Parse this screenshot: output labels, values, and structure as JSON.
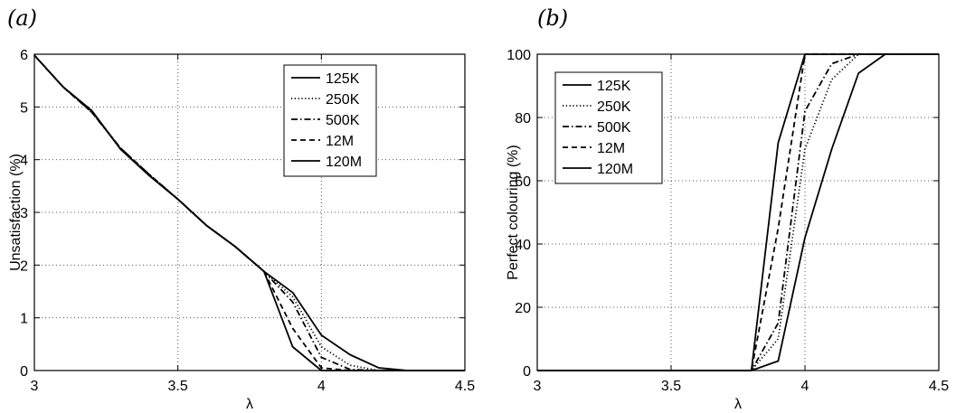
{
  "chart_data": [
    {
      "type": "line",
      "panel_label": "(a)",
      "xlabel": "λ",
      "ylabel": "Unsatisfaction (%)",
      "xlim": [
        3,
        4.5
      ],
      "ylim": [
        0,
        6
      ],
      "xticks": [
        "3",
        "3.5",
        "4",
        "4.5"
      ],
      "yticks": [
        "0",
        "1",
        "2",
        "3",
        "4",
        "5",
        "6"
      ],
      "grid": true,
      "legend_position": "top-right",
      "x": [
        3.0,
        3.1,
        3.2,
        3.3,
        3.4,
        3.5,
        3.6,
        3.7,
        3.8,
        3.9,
        4.0,
        4.1,
        4.2,
        4.3,
        4.4,
        4.5
      ],
      "series": [
        {
          "name": "125K",
          "style": "solid",
          "values": [
            5.98,
            5.38,
            4.93,
            4.2,
            3.7,
            3.25,
            2.75,
            2.35,
            1.88,
            1.48,
            0.67,
            0.3,
            0.05,
            0.0,
            0.0,
            0.0
          ]
        },
        {
          "name": "250K",
          "style": "dotted",
          "values": [
            5.98,
            5.38,
            4.9,
            4.22,
            3.72,
            3.25,
            2.75,
            2.35,
            1.88,
            1.4,
            0.45,
            0.1,
            0.0,
            0.0,
            0.0,
            0.0
          ]
        },
        {
          "name": "500K",
          "style": "dashdot",
          "values": [
            5.98,
            5.38,
            4.9,
            4.22,
            3.72,
            3.25,
            2.75,
            2.35,
            1.88,
            1.3,
            0.25,
            0.02,
            0.0,
            0.0,
            0.0,
            0.0
          ]
        },
        {
          "name": "12M",
          "style": "dashed",
          "values": [
            5.98,
            5.38,
            4.9,
            4.22,
            3.72,
            3.25,
            2.75,
            2.35,
            1.88,
            0.8,
            0.05,
            0.0,
            0.0,
            0.0,
            0.0,
            0.0
          ]
        },
        {
          "name": "120M",
          "style": "solid",
          "values": [
            5.98,
            5.38,
            4.93,
            4.2,
            3.7,
            3.25,
            2.75,
            2.35,
            1.88,
            0.45,
            0.0,
            0.0,
            0.0,
            0.0,
            0.0,
            0.0
          ]
        }
      ]
    },
    {
      "type": "line",
      "panel_label": "(b)",
      "xlabel": "λ",
      "ylabel": "Perfect colouring (%)",
      "xlim": [
        3,
        4.5
      ],
      "ylim": [
        0,
        100
      ],
      "xticks": [
        "3",
        "3.5",
        "4",
        "4.5"
      ],
      "yticks": [
        "0",
        "20",
        "40",
        "60",
        "80",
        "100"
      ],
      "grid": true,
      "legend_position": "top-left",
      "x": [
        3.0,
        3.1,
        3.2,
        3.3,
        3.4,
        3.5,
        3.6,
        3.7,
        3.8,
        3.9,
        4.0,
        4.1,
        4.2,
        4.3,
        4.4,
        4.5
      ],
      "series": [
        {
          "name": "125K",
          "style": "solid",
          "values": [
            0,
            0,
            0,
            0,
            0,
            0,
            0,
            0,
            0,
            3,
            42,
            70,
            94,
            100,
            100,
            100
          ]
        },
        {
          "name": "250K",
          "style": "dotted",
          "values": [
            0,
            0,
            0,
            0,
            0,
            0,
            0,
            0,
            0,
            10,
            70,
            92,
            100,
            100,
            100,
            100
          ]
        },
        {
          "name": "500K",
          "style": "dashdot",
          "values": [
            0,
            0,
            0,
            0,
            0,
            0,
            0,
            0,
            0,
            15,
            82,
            97,
            100,
            100,
            100,
            100
          ]
        },
        {
          "name": "12M",
          "style": "dashed",
          "values": [
            0,
            0,
            0,
            0,
            0,
            0,
            0,
            0,
            0,
            45,
            100,
            100,
            100,
            100,
            100,
            100
          ]
        },
        {
          "name": "120M",
          "style": "solid",
          "values": [
            0,
            0,
            0,
            0,
            0,
            0,
            0,
            0,
            0,
            72,
            100,
            100,
            100,
            100,
            100,
            100
          ]
        }
      ]
    }
  ]
}
